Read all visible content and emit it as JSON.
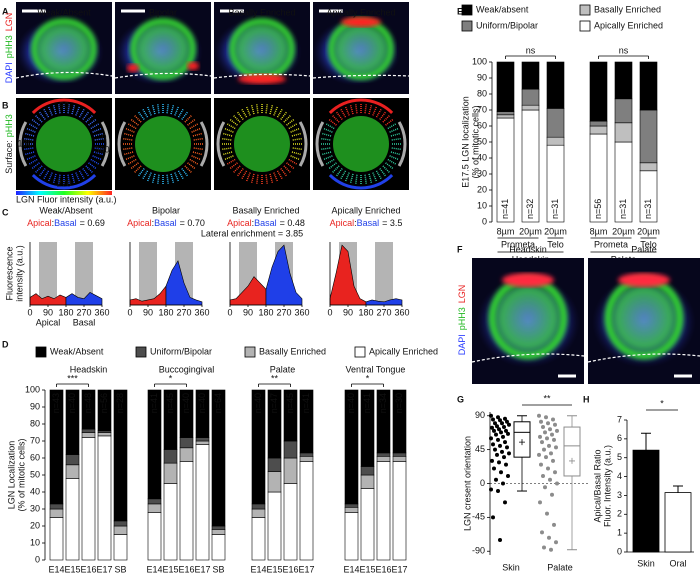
{
  "panel_letters": [
    "A",
    "B",
    "C",
    "D",
    "E",
    "F",
    "G",
    "H"
  ],
  "image_panels": {
    "titles": [
      "Weak/Absent",
      "Bipolar",
      "Basally Enriched",
      "Apically Enriched"
    ],
    "a_stains": [
      {
        "text": "DAPI",
        "color": "#2a3cff"
      },
      {
        "text": "pHH3",
        "color": "#22b822"
      },
      {
        "text": "LGN",
        "color": "#e82020"
      }
    ],
    "b_label": [
      {
        "text": "Surface:",
        "color": "#222222"
      },
      {
        "text": "pHH3",
        "color": "#22b822"
      }
    ],
    "b_angles": [
      "90",
      "180",
      "0",
      "360",
      "270"
    ],
    "b_colorbar_label": "LGN Fluor intensity (a.u.)",
    "f_titles": [
      "Headskin",
      "Palate"
    ],
    "f_stains": [
      {
        "text": "DAPI",
        "color": "#2a3cff"
      },
      {
        "text": "pHH3",
        "color": "#22b822"
      },
      {
        "text": "LGN",
        "color": "#e82020"
      }
    ]
  },
  "chart_data": [
    {
      "type": "area",
      "title": "Weak/Absent",
      "ratio_apical": "Apical",
      "ratio_sep": ":",
      "ratio_basal": "Basal",
      "ratio_text": "= 0.69",
      "ylabel": [
        "Fluorescence",
        "intensity (a.u.)"
      ],
      "x": [
        0,
        30,
        60,
        90,
        120,
        150,
        180,
        210,
        240,
        270,
        300,
        330,
        360
      ],
      "xlim": [
        0,
        360
      ],
      "xticks": [
        0,
        90,
        180,
        270,
        360
      ],
      "ylim": [
        0,
        1
      ],
      "shaded": [
        [
          45,
          135
        ],
        [
          225,
          315
        ]
      ],
      "series": [
        {
          "name": "Apical",
          "color": "#e8231f",
          "values": [
            0.12,
            0.18,
            0.1,
            0.14,
            0.1,
            0.16,
            0.12,
            null,
            null,
            null,
            null,
            null,
            null
          ]
        },
        {
          "name": "Basal",
          "color": "#1f3fe8",
          "values": [
            null,
            null,
            null,
            null,
            null,
            null,
            0.12,
            0.18,
            0.12,
            0.1,
            0.2,
            0.15,
            0.1
          ]
        }
      ]
    },
    {
      "type": "area",
      "title": "Bipolar",
      "ratio_apical": "Apical",
      "ratio_sep": ":",
      "ratio_basal": "Basal",
      "ratio_text": "= 0.70",
      "annotation": "Lateral enrichment = 3.85",
      "x": [
        0,
        30,
        60,
        90,
        120,
        150,
        180,
        210,
        240,
        270,
        300,
        330,
        360
      ],
      "xlim": [
        0,
        360
      ],
      "xticks": [
        0,
        90,
        180,
        270,
        360
      ],
      "ylim": [
        0,
        1
      ],
      "shaded": [
        [
          45,
          135
        ],
        [
          225,
          315
        ]
      ],
      "series": [
        {
          "color": "#e8231f",
          "values": [
            0.08,
            0.1,
            0.06,
            0.08,
            0.1,
            0.18,
            0.3,
            null,
            null,
            null,
            null,
            null,
            null
          ]
        },
        {
          "color": "#1f3fe8",
          "values": [
            null,
            null,
            null,
            null,
            null,
            null,
            0.3,
            0.55,
            0.7,
            0.35,
            0.12,
            0.08,
            0.05
          ]
        }
      ]
    },
    {
      "type": "area",
      "title": "Basally Enriched",
      "ratio_apical": "Apical",
      "ratio_sep": ":",
      "ratio_basal": "Basal",
      "ratio_text": "= 0.48",
      "x": [
        0,
        30,
        60,
        90,
        120,
        150,
        180,
        210,
        240,
        270,
        300,
        330,
        360
      ],
      "xlim": [
        0,
        360
      ],
      "xticks": [
        0,
        90,
        180,
        270,
        360
      ],
      "ylim": [
        0,
        1
      ],
      "shaded": [
        [
          45,
          135
        ],
        [
          225,
          315
        ]
      ],
      "series": [
        {
          "color": "#e8231f",
          "values": [
            0.08,
            0.1,
            0.2,
            0.3,
            0.45,
            0.35,
            0.25,
            null,
            null,
            null,
            null,
            null,
            null
          ]
        },
        {
          "color": "#1f3fe8",
          "values": [
            null,
            null,
            null,
            null,
            null,
            null,
            0.25,
            0.6,
            0.85,
            0.95,
            0.5,
            0.2,
            0.1
          ]
        }
      ]
    },
    {
      "type": "area",
      "title": "Apically Enriched",
      "ratio_apical": "Apical",
      "ratio_sep": ":",
      "ratio_basal": "Basal",
      "ratio_text": "= 3.5",
      "x": [
        0,
        30,
        60,
        90,
        120,
        150,
        180,
        210,
        240,
        270,
        300,
        330,
        360
      ],
      "xlim": [
        0,
        360
      ],
      "xticks": [
        0,
        90,
        180,
        270,
        360
      ],
      "ylim": [
        0,
        1
      ],
      "shaded": [
        [
          45,
          135
        ],
        [
          225,
          315
        ]
      ],
      "series": [
        {
          "color": "#e8231f",
          "values": [
            0.1,
            0.5,
            0.95,
            0.85,
            0.3,
            0.1,
            0.05,
            null,
            null,
            null,
            null,
            null,
            null
          ]
        },
        {
          "color": "#1f3fe8",
          "values": [
            null,
            null,
            null,
            null,
            null,
            null,
            0.05,
            0.08,
            0.06,
            0.05,
            0.08,
            0.1,
            0.08
          ]
        }
      ]
    },
    {
      "type": "grouped_stacked_bar",
      "ylabel": [
        "LGN Localization",
        "(% of mitotic cells)"
      ],
      "ylim": [
        0,
        100
      ],
      "yticks": [
        0,
        10,
        20,
        30,
        40,
        50,
        60,
        70,
        80,
        90,
        100
      ],
      "series": [
        {
          "name": "Weak/Absent",
          "color": "#000000"
        },
        {
          "name": "Uniform/Bipolar",
          "color": "#4d4d4d"
        },
        {
          "name": "Basally Enriched",
          "color": "#b3b3b3"
        },
        {
          "name": "Apically Enriched",
          "color": "#ffffff"
        }
      ],
      "groups": [
        {
          "title": "Headskin",
          "significance": "***",
          "categories": [
            "E14",
            "E15",
            "E16",
            "E17",
            "SB"
          ],
          "n_labels": [
            "n=43",
            "n=40",
            "n=48",
            "n=56",
            "n=28"
          ],
          "values": [
            [
              67,
              38,
              23,
              24,
              77
            ],
            [
              3,
              6,
              2,
              1,
              3
            ],
            [
              5,
              8,
              3,
              2,
              5
            ],
            [
              25,
              48,
              72,
              73,
              15
            ]
          ]
        },
        {
          "title": "Buccogingival",
          "significance": "*",
          "categories": [
            "E14",
            "E15",
            "E16",
            "E17",
            "SB"
          ],
          "n_labels": [
            "n=41",
            "n=45",
            "n=40",
            "n=40",
            "n=64"
          ],
          "values": [
            [
              64,
              35,
              28,
              28,
              80
            ],
            [
              3,
              8,
              6,
              2,
              2
            ],
            [
              5,
              12,
              8,
              2,
              3
            ],
            [
              28,
              45,
              58,
              68,
              15
            ]
          ]
        },
        {
          "title": "Palate",
          "significance": "**",
          "categories": [
            "E14",
            "E15",
            "E16",
            "E17"
          ],
          "n_labels": [
            "n=40",
            "n=47",
            "n=45",
            "n=41"
          ],
          "values": [
            [
              67,
              40,
              30,
              37
            ],
            [
              3,
              8,
              10,
              2
            ],
            [
              5,
              12,
              15,
              3
            ],
            [
              25,
              40,
              45,
              58
            ]
          ]
        },
        {
          "title": "Ventral Tongue",
          "significance": "*",
          "categories": [
            "E14",
            "E15",
            "E16",
            "E17"
          ],
          "n_labels": [
            "n=40",
            "n=41",
            "n=34",
            "n=30"
          ],
          "values": [
            [
              67,
              45,
              37,
              37
            ],
            [
              2,
              5,
              2,
              2
            ],
            [
              3,
              8,
              3,
              3
            ],
            [
              28,
              42,
              58,
              58
            ]
          ]
        }
      ]
    },
    {
      "type": "grouped_stacked_bar",
      "ylabel": [
        "E17.5 LGN localization",
        "(% of mitotic cells)"
      ],
      "ylim": [
        0,
        100
      ],
      "yticks": [
        0,
        10,
        20,
        30,
        40,
        50,
        60,
        70,
        80,
        90,
        100
      ],
      "series": [
        {
          "name": "Weak/absent",
          "color": "#000000"
        },
        {
          "name": "Uniform/Bipolar",
          "color": "#7f7f7f"
        },
        {
          "name": "Basally Enriched",
          "color": "#bfbfbf"
        },
        {
          "name": "Apically Enriched",
          "color": "#ffffff"
        }
      ],
      "groups": [
        {
          "title": "Headskin",
          "significance": "ns",
          "categories": [
            "8µm",
            "20µm",
            "20µm"
          ],
          "subgroups": [
            "Prometa",
            "Telo"
          ],
          "n_labels": [
            "n=41",
            "n=32",
            "n=31"
          ],
          "values": [
            [
              31,
              17,
              29
            ],
            [
              2,
              10,
              18
            ],
            [
              2,
              3,
              5
            ],
            [
              65,
              70,
              48
            ]
          ]
        },
        {
          "title": "Palate",
          "significance": "ns",
          "categories": [
            "8µm",
            "20µm",
            "20µm"
          ],
          "subgroups": [
            "Prometa",
            "Telo"
          ],
          "n_labels": [
            "n=56",
            "n=31",
            "n=31"
          ],
          "values": [
            [
              37,
              23,
              30
            ],
            [
              3,
              15,
              33
            ],
            [
              5,
              12,
              5
            ],
            [
              55,
              50,
              32
            ]
          ]
        }
      ]
    },
    {
      "type": "box_scatter",
      "ylabel": "LGN cresent orientation",
      "ylim": [
        -95,
        95
      ],
      "yticks": [
        -90,
        -45,
        0,
        45,
        90
      ],
      "categories": [
        "Skin",
        "Palate"
      ],
      "significance": "**",
      "colors": [
        "#000000",
        "#8c8c8c"
      ],
      "points": [
        [
          90,
          88,
          86,
          85,
          84,
          82,
          80,
          80,
          78,
          76,
          75,
          74,
          72,
          70,
          70,
          68,
          66,
          65,
          62,
          60,
          58,
          55,
          52,
          50,
          48,
          45,
          42,
          40,
          38,
          35,
          30,
          28,
          25,
          20,
          15,
          10,
          5,
          0,
          -8,
          -10,
          -25,
          -45,
          -75
        ],
        [
          90,
          88,
          85,
          82,
          80,
          78,
          75,
          72,
          70,
          68,
          65,
          62,
          60,
          58,
          55,
          50,
          48,
          45,
          40,
          38,
          35,
          30,
          25,
          20,
          15,
          10,
          5,
          0,
          -5,
          -15,
          -25,
          -40,
          -55,
          -65,
          -72,
          -78,
          -85,
          -88
        ]
      ],
      "boxes": [
        {
          "whislo": -10,
          "q1": 35,
          "med": 68,
          "q3": 82,
          "whishi": 90,
          "mean": 55
        },
        {
          "whislo": -88,
          "q1": 10,
          "med": 50,
          "q3": 75,
          "whishi": 90,
          "mean": 30
        }
      ]
    },
    {
      "type": "bar",
      "ylabel": [
        "Apical/Basal Ratio",
        "Fluor. Intensity (a.u.)"
      ],
      "categories": [
        "Skin",
        "Oral"
      ],
      "values": [
        5.4,
        3.15
      ],
      "errors": [
        0.9,
        0.35
      ],
      "colors": [
        "#000000",
        "#ffffff"
      ],
      "ylim": [
        0,
        7
      ],
      "yticks": [
        0,
        1,
        2,
        3,
        4,
        5,
        6,
        7
      ],
      "significance": "*"
    }
  ]
}
